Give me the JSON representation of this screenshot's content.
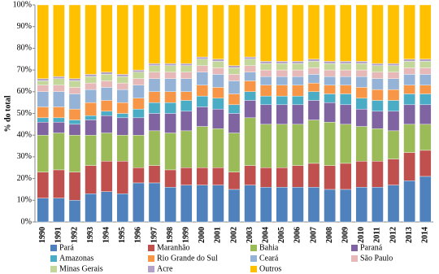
{
  "chart_data": {
    "type": "stacked-bar-100",
    "y_label": "% do total",
    "categories": [
      "1990",
      "1991",
      "1992",
      "1993",
      "1994",
      "1995",
      "1996",
      "1997",
      "1998",
      "1999",
      "2000",
      "2001",
      "2002",
      "2003",
      "2004",
      "2005",
      "2006",
      "2007",
      "2008",
      "2009",
      "2010",
      "2011",
      "2012",
      "2013",
      "2014"
    ],
    "ylim": [
      0,
      100
    ],
    "yticks": [
      {
        "value": 0,
        "label": "0%"
      },
      {
        "value": 10,
        "label": "10%"
      },
      {
        "value": 20,
        "label": "20%"
      },
      {
        "value": 30,
        "label": "30%"
      },
      {
        "value": 40,
        "label": "40%"
      },
      {
        "value": 50,
        "label": "50%"
      },
      {
        "value": 60,
        "label": "60%"
      },
      {
        "value": 70,
        "label": "70%"
      },
      {
        "value": 80,
        "label": "80%"
      },
      {
        "value": 90,
        "label": "90%"
      },
      {
        "value": 100,
        "label": "100%"
      }
    ],
    "series": [
      {
        "name": "Pará",
        "color": "#4f81bd",
        "values": [
          11,
          11,
          10,
          13,
          14,
          13,
          18,
          18,
          16,
          17,
          17,
          17,
          15,
          17,
          16,
          16,
          16,
          16,
          15,
          15,
          16,
          16,
          17,
          19,
          21
        ]
      },
      {
        "name": "Maranhão",
        "color": "#c0504d",
        "values": [
          12,
          13,
          13,
          13,
          14,
          15,
          7,
          8,
          8,
          8,
          8,
          8,
          8,
          9,
          9,
          9,
          10,
          11,
          11,
          12,
          12,
          12,
          12,
          13,
          12
        ]
      },
      {
        "name": "Bahia",
        "color": "#9bbb59",
        "values": [
          17,
          17,
          17,
          14,
          13,
          12,
          15,
          16,
          17,
          17,
          19,
          18,
          18,
          22,
          20,
          20,
          19,
          20,
          20,
          18,
          16,
          15,
          13,
          13,
          12
        ]
      },
      {
        "name": "Paraná",
        "color": "#8064a2",
        "values": [
          6,
          5,
          5,
          7,
          8,
          8,
          8,
          8,
          9,
          9,
          9,
          9,
          9,
          8,
          9,
          9,
          9,
          9,
          9,
          9,
          8,
          8,
          9,
          9,
          9
        ]
      },
      {
        "name": "Amazonas",
        "color": "#4bacc6",
        "values": [
          2,
          2,
          2,
          2,
          2,
          2,
          4,
          5,
          5,
          5,
          5,
          5,
          4,
          4,
          4,
          4,
          4,
          4,
          4,
          5,
          5,
          5,
          5,
          5,
          5
        ]
      },
      {
        "name": "Rio Grande do Sul",
        "color": "#f79646",
        "values": [
          5,
          5,
          5,
          6,
          5,
          5,
          5,
          5,
          5,
          4,
          5,
          5,
          5,
          5,
          5,
          5,
          5,
          4,
          4,
          4,
          5,
          5,
          5,
          4,
          4
        ]
      },
      {
        "name": "Ceará",
        "color": "#95b3d7",
        "values": [
          7,
          7,
          7,
          6,
          6,
          6,
          6,
          6,
          6,
          6,
          6,
          6,
          6,
          4,
          4,
          4,
          4,
          4,
          4,
          4,
          5,
          5,
          5,
          5,
          5
        ]
      },
      {
        "name": "São Paulo",
        "color": "#e6b9b8",
        "values": [
          3,
          3,
          3,
          3,
          3,
          3,
          3,
          3,
          3,
          3,
          3,
          3,
          3,
          3,
          3,
          3,
          3,
          3,
          3,
          3,
          3,
          3,
          3,
          3,
          3
        ]
      },
      {
        "name": "Minas Gerais",
        "color": "#c4d79b",
        "values": [
          2,
          3,
          3,
          3,
          3,
          3,
          3,
          3,
          3,
          3,
          3,
          3,
          3,
          3,
          3,
          3,
          3,
          3,
          3,
          3,
          3,
          3,
          3,
          3,
          3
        ]
      },
      {
        "name": "Acre",
        "color": "#b3a2c7",
        "values": [
          1,
          1,
          1,
          1,
          1,
          1,
          1,
          1,
          1,
          1,
          1,
          1,
          1,
          1,
          1,
          1,
          1,
          1,
          1,
          1,
          1,
          1,
          1,
          1,
          1
        ]
      },
      {
        "name": "Outros",
        "color": "#ffc000",
        "values": [
          34,
          33,
          34,
          32,
          31,
          32,
          30,
          27,
          27,
          27,
          24,
          25,
          28,
          24,
          26,
          26,
          26,
          25,
          26,
          26,
          26,
          27,
          27,
          25,
          25
        ]
      }
    ]
  }
}
